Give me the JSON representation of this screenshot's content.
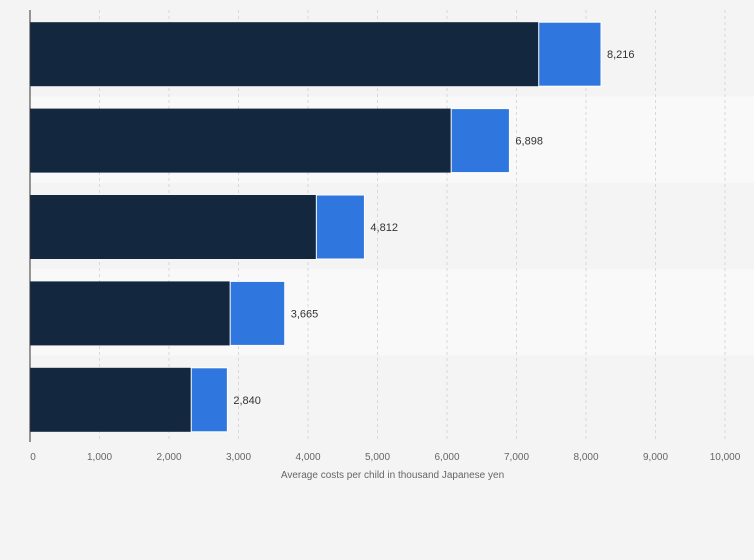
{
  "chart_data": {
    "type": "bar",
    "orientation": "horizontal",
    "stacked": true,
    "title": "",
    "xlabel": "Average costs per child in thousand Japanese yen",
    "ylabel": "",
    "xlim": [
      0,
      10000
    ],
    "x_ticks": [
      "0",
      "1,000",
      "2,000",
      "3,000",
      "4,000",
      "5,000",
      "6,000",
      "7,000",
      "8,000",
      "9,000",
      "10,000"
    ],
    "grid": true,
    "legend": "none",
    "categories": [
      "",
      "",
      "",
      "",
      ""
    ],
    "series": [
      {
        "values": [
          7320,
          6060,
          4120,
          2880,
          2320
        ],
        "color": "#13273f"
      },
      {
        "values": [
          896,
          838,
          692,
          785,
          520
        ],
        "color": "#2f77de"
      }
    ],
    "totals": [
      8216,
      6898,
      4812,
      3665,
      2840
    ],
    "total_labels": [
      "8,216",
      "6,898",
      "4,812",
      "3,665",
      "2,840"
    ]
  },
  "colors": {
    "background": "#f4f4f4",
    "band_light": "#f9f9f9",
    "gridline": "#d9d9d9",
    "axis": "#333333"
  }
}
